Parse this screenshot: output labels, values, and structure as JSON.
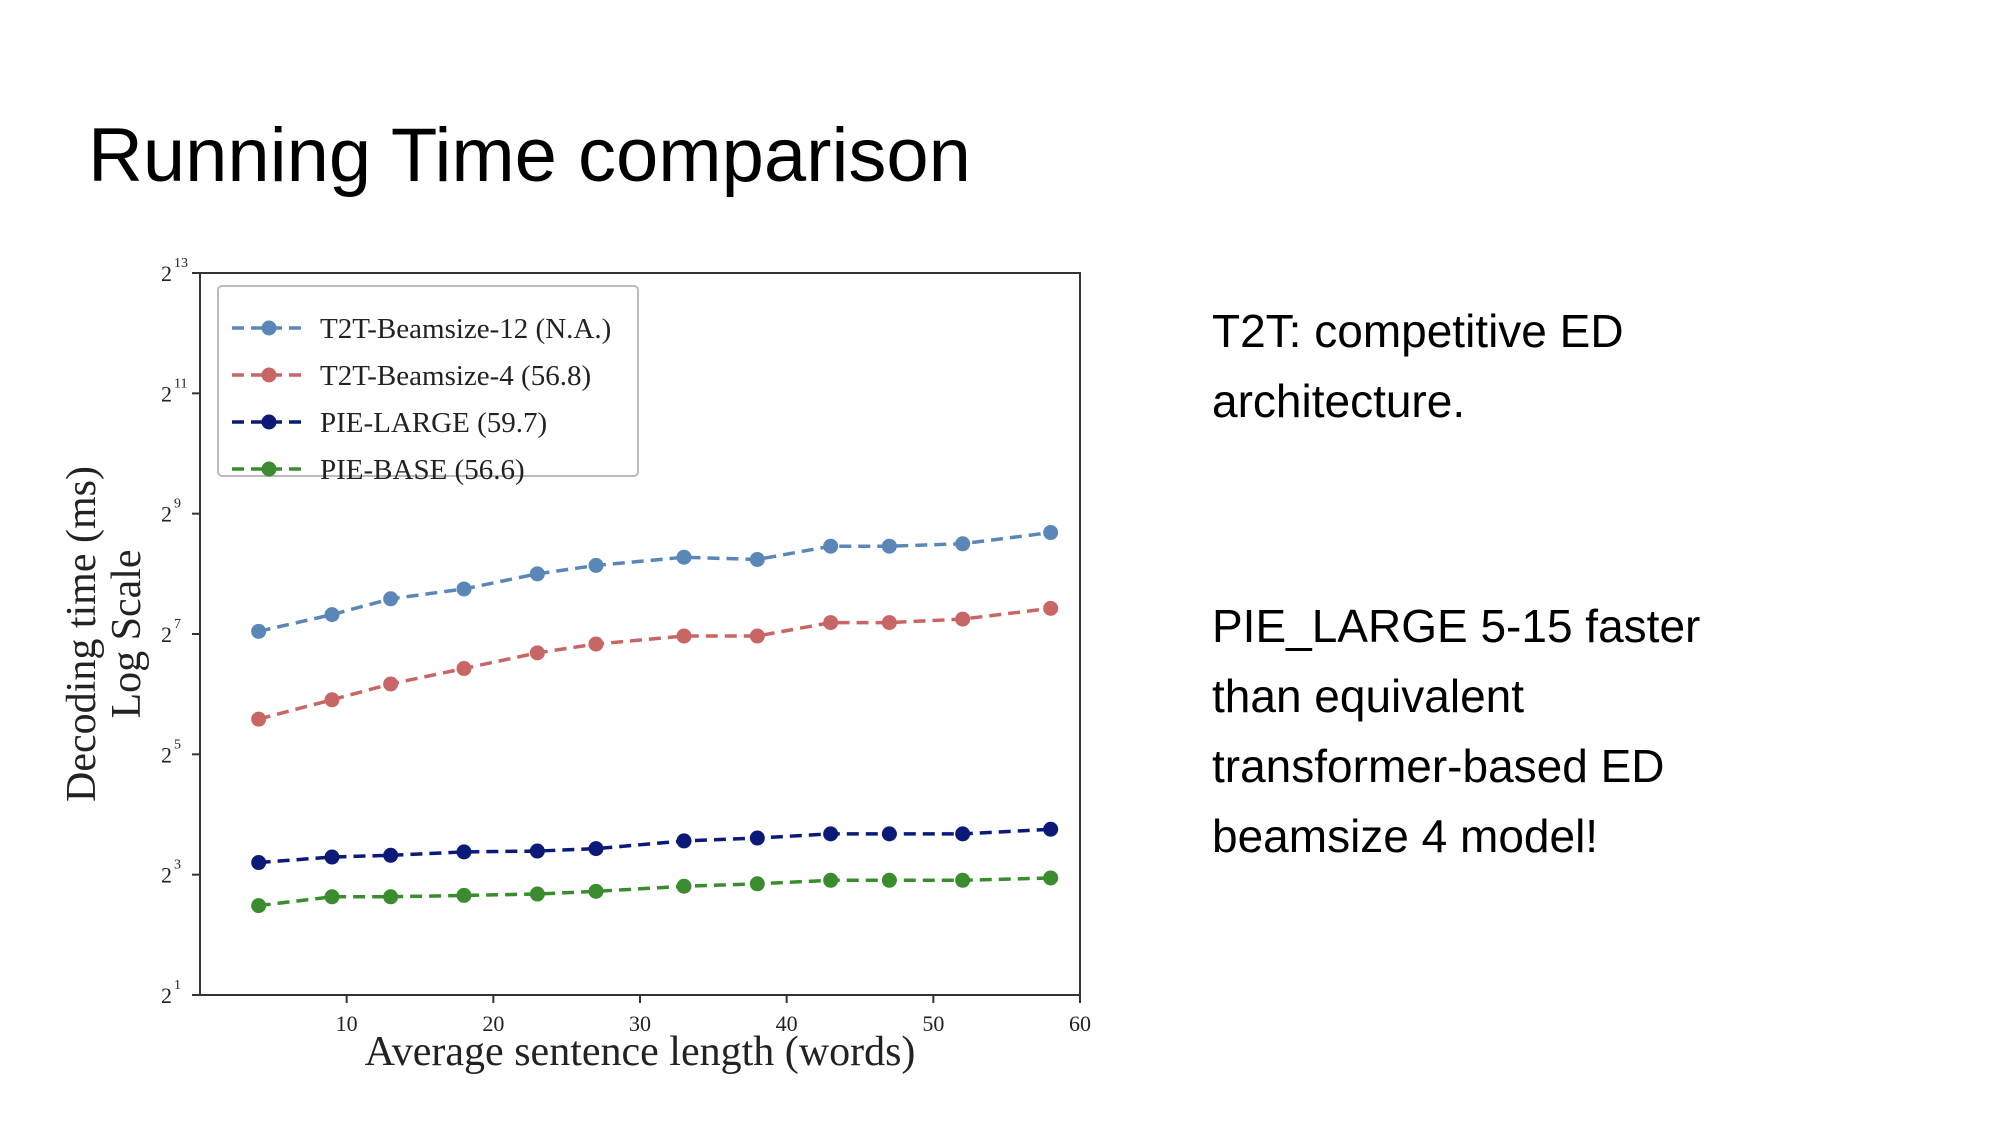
{
  "slide": {
    "title": "Running Time comparison",
    "notes": [
      "T2T: competitive ED architecture.",
      "PIE_LARGE 5-15 faster than equivalent transformer-based ED beamsize 4 model!"
    ]
  },
  "chart_data": {
    "type": "line",
    "title": "",
    "xlabel": "Average sentence length (words)",
    "ylabel": [
      "Decoding time (ms)",
      "Log Scale"
    ],
    "xlim": [
      0,
      60
    ],
    "ylim": [
      2,
      8192
    ],
    "y_scale": "log2",
    "x_ticks": [
      10,
      20,
      30,
      40,
      50,
      60
    ],
    "y_ticks": [
      {
        "base": "2",
        "exp": "1"
      },
      {
        "base": "2",
        "exp": "3"
      },
      {
        "base": "2",
        "exp": "5"
      },
      {
        "base": "2",
        "exp": "7"
      },
      {
        "base": "2",
        "exp": "9"
      },
      {
        "base": "2",
        "exp": "11"
      },
      {
        "base": "2",
        "exp": "13"
      }
    ],
    "grid": false,
    "legend_position": "top-left",
    "x": [
      4,
      9,
      13,
      18,
      23,
      27,
      33,
      38,
      43,
      47,
      52,
      58
    ],
    "series": [
      {
        "name": "T2T-Beamsize-12 (N.A.)",
        "color": "#5b86b8",
        "values": [
          132,
          160,
          192,
          215,
          256,
          282,
          310,
          302,
          352,
          352,
          362,
          412
        ]
      },
      {
        "name": "T2T-Beamsize-4 (56.8)",
        "color": "#c86665",
        "values": [
          48,
          60,
          72,
          86,
          103,
          114,
          125,
          125,
          146,
          146,
          152,
          172
        ]
      },
      {
        "name": "PIE-LARGE (59.7)",
        "color": "#0b1a78",
        "values": [
          9.2,
          9.8,
          10.0,
          10.4,
          10.5,
          10.8,
          11.8,
          12.2,
          12.8,
          12.8,
          12.8,
          13.5
        ]
      },
      {
        "name": "PIE-BASE (56.6)",
        "color": "#3a8c2e",
        "values": [
          5.6,
          6.2,
          6.2,
          6.3,
          6.4,
          6.6,
          7.0,
          7.2,
          7.5,
          7.5,
          7.5,
          7.7
        ]
      }
    ]
  }
}
